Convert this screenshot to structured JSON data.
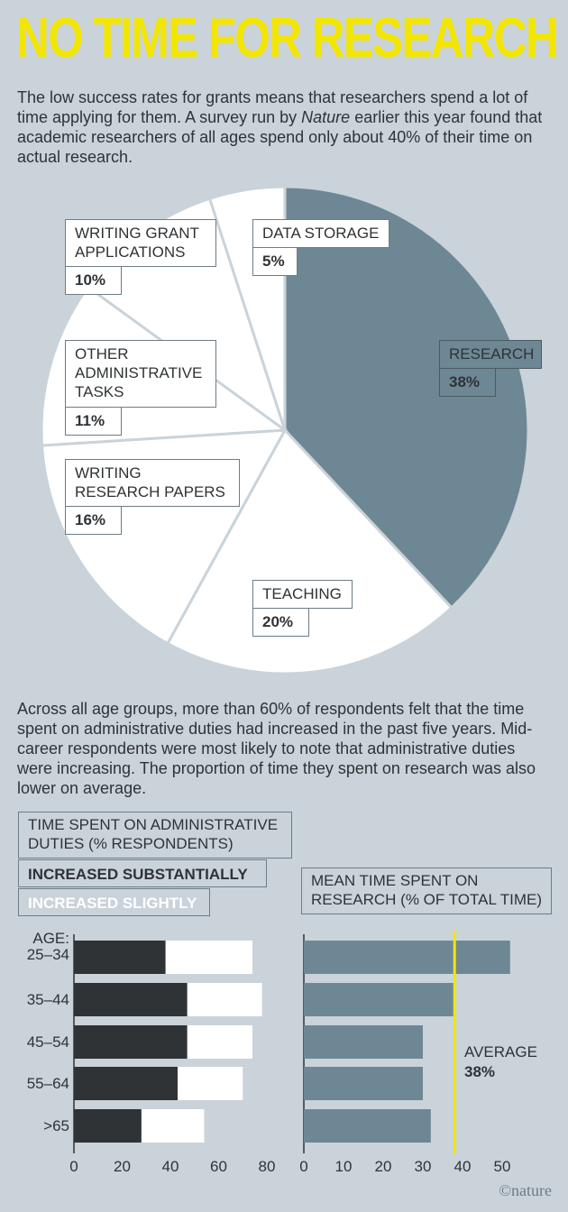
{
  "title": "NO TIME FOR RESEARCH",
  "intro": {
    "before": "The low success rates for grants means that researchers spend a lot of time applying for them. A survey run by ",
    "italic": "Nature",
    "after": " earlier this year found that academic researchers of all ages spend only about 40% of their time on actual research."
  },
  "paragraph2": "Across all age groups, more than 60% of respondents felt that the time spent on administrative duties had increased in the past five years. Mid-career respondents were most likely to note that administrative duties were increasing. The proportion of time they spent on research was also lower on average.",
  "colors": {
    "background": "#cad3da",
    "title": "#f2e600",
    "research": "#6e8794",
    "pie_other": "#ffffff",
    "substantial": "#2f3336",
    "slight": "#ffffff",
    "mean_bar": "#6e8794",
    "average_line": "#f2e600"
  },
  "legend": {
    "heading_line1": "TIME SPENT ON ADMINISTRATIVE",
    "heading_line2": "DUTIES (% RESPONDENTS)",
    "substantial": "INCREASED SUBSTANTIALLY",
    "slight": "INCREASED SLIGHTLY"
  },
  "right_heading": {
    "line1": "MEAN TIME SPENT ON",
    "line2": "RESEARCH (% OF TOTAL TIME)"
  },
  "age_header": "AGE:",
  "average": {
    "label": "AVERAGE",
    "value": "38%"
  },
  "credit": "©nature",
  "chart_data": [
    {
      "type": "pie",
      "slices": [
        {
          "label": "RESEARCH",
          "value": 38,
          "display": "38%",
          "label_lines": [
            "RESEARCH"
          ]
        },
        {
          "label": "TEACHING",
          "value": 20,
          "display": "20%",
          "label_lines": [
            "TEACHING"
          ]
        },
        {
          "label": "WRITING RESEARCH PAPERS",
          "value": 16,
          "display": "16%",
          "label_lines": [
            "WRITING",
            "RESEARCH PAPERS"
          ]
        },
        {
          "label": "OTHER ADMINISTRATIVE TASKS",
          "value": 11,
          "display": "11%",
          "label_lines": [
            "OTHER",
            "ADMINISTRATIVE",
            "TASKS"
          ]
        },
        {
          "label": "WRITING GRANT APPLICATIONS",
          "value": 10,
          "display": "10%",
          "label_lines": [
            "WRITING GRANT",
            "APPLICATIONS"
          ]
        },
        {
          "label": "DATA STORAGE",
          "value": 5,
          "display": "5%",
          "label_lines": [
            "DATA STORAGE"
          ]
        }
      ]
    },
    {
      "type": "bar",
      "orientation": "horizontal",
      "stacked": true,
      "title": "TIME SPENT ON ADMINISTRATIVE DUTIES (% RESPONDENTS)",
      "categories": [
        "25–34",
        "35–44",
        "45–54",
        "55–64",
        ">65"
      ],
      "series": [
        {
          "name": "INCREASED SUBSTANTIALLY",
          "values": [
            38,
            47,
            47,
            43,
            28
          ]
        },
        {
          "name": "INCREASED SLIGHTLY",
          "values": [
            36,
            31,
            27,
            27,
            26
          ]
        }
      ],
      "xlim": [
        0,
        80
      ],
      "xticks": [
        0,
        20,
        40,
        60,
        80
      ]
    },
    {
      "type": "bar",
      "orientation": "horizontal",
      "title": "MEAN TIME SPENT ON RESEARCH (% OF TOTAL TIME)",
      "categories": [
        "25–34",
        "35–44",
        "45–54",
        "55–64",
        ">65"
      ],
      "values": [
        52,
        38,
        30,
        30,
        32
      ],
      "reference_line": 38,
      "xlim": [
        0,
        50
      ],
      "xticks": [
        0,
        10,
        20,
        30,
        40,
        50
      ]
    }
  ]
}
